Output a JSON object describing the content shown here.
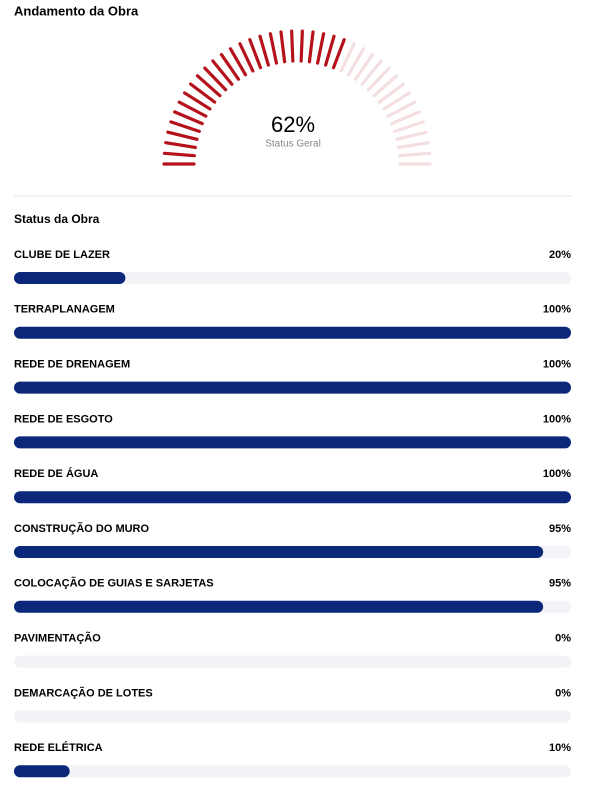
{
  "header": {
    "title": "Andamento da Obra"
  },
  "gauge": {
    "value": 62,
    "value_label": "62%",
    "caption": "Status Geral",
    "active_color": "#b5121b",
    "inactive_color": "#f4dfe0"
  },
  "status": {
    "title": "Status da Obra",
    "bar_color": "#0b2779",
    "track_color": "#f2f3f7",
    "items": [
      {
        "label": "CLUBE DE LAZER",
        "value": 20,
        "value_label": "20%"
      },
      {
        "label": "TERRAPLANAGEM",
        "value": 100,
        "value_label": "100%"
      },
      {
        "label": "REDE DE DRENAGEM",
        "value": 100,
        "value_label": "100%"
      },
      {
        "label": "REDE DE ESGOTO",
        "value": 100,
        "value_label": "100%"
      },
      {
        "label": "REDE DE ÁGUA",
        "value": 100,
        "value_label": "100%"
      },
      {
        "label": "CONSTRUÇÃO DO MURO",
        "value": 95,
        "value_label": "95%"
      },
      {
        "label": "COLOCAÇÃO DE GUIAS E SARJETAS",
        "value": 95,
        "value_label": "95%"
      },
      {
        "label": "PAVIMENTAÇÃO",
        "value": 0,
        "value_label": "0%"
      },
      {
        "label": "DEMARCAÇÃO DE LOTES",
        "value": 0,
        "value_label": "0%"
      },
      {
        "label": "REDE ELÉTRICA",
        "value": 10,
        "value_label": "10%"
      }
    ]
  }
}
